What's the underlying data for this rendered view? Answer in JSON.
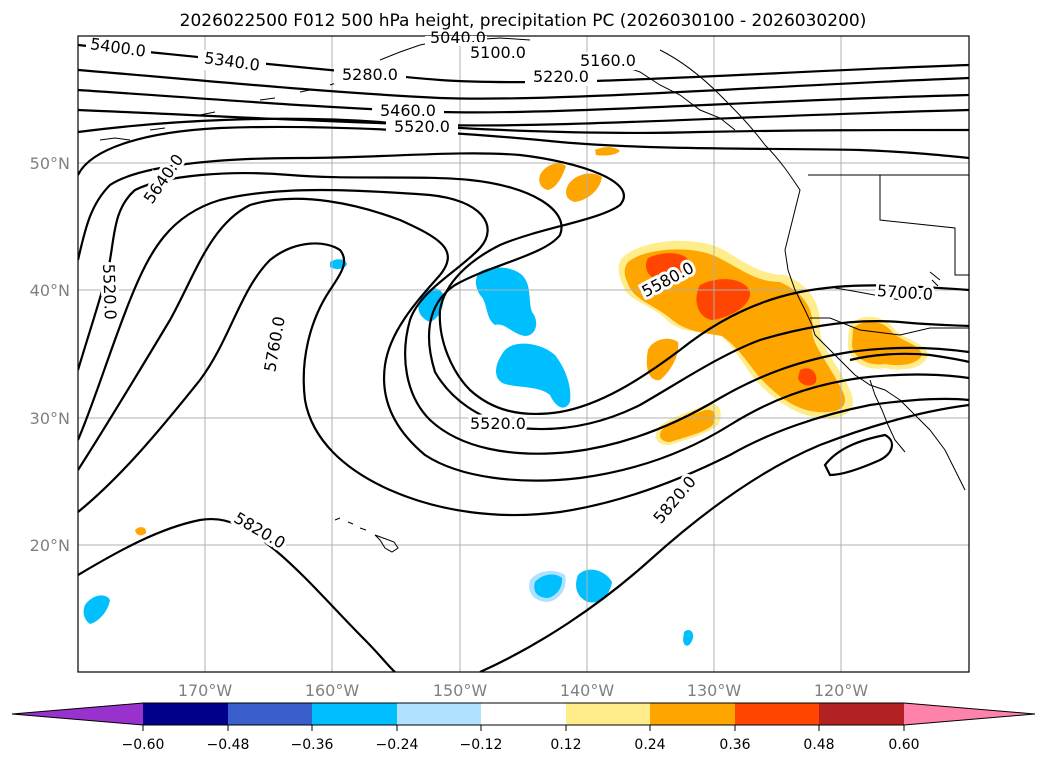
{
  "title": "2026022500 F012 500 hPa height, precipitation PC (2026030100 - 2026030200)",
  "lat_labels": [
    "50°N",
    "40°N",
    "30°N",
    "20°N"
  ],
  "lon_labels": [
    "170°W",
    "160°W",
    "150°W",
    "140°W",
    "130°W",
    "120°W"
  ],
  "colorbar": {
    "ticks": [
      "−0.60",
      "−0.48",
      "−0.36",
      "−0.24",
      "−0.12",
      "0.12",
      "0.24",
      "0.36",
      "0.48",
      "0.60"
    ],
    "colors": [
      "#9932cc",
      "#00008b",
      "#3a5fcd",
      "#00bfff",
      "#b0e2ff",
      "#ffffff",
      "#ffec8b",
      "#ffa500",
      "#ff4500",
      "#b22222",
      "#ff82ab"
    ]
  },
  "contour_labels": {
    "c5400a": "5400.0",
    "c5340": "5340.0",
    "c5040": "5040.0",
    "c5100": "5100.0",
    "c5160": "5160.0",
    "c5280": "5280.0",
    "c5220": "5220.0",
    "c5460": "5460.0",
    "c5520a": "5520.0",
    "c5640": "5640.0",
    "c5520b": "5520.0",
    "c5760": "5760.0",
    "c5580": "5580.0",
    "c5700": "5700.0",
    "c5520c": "5520.0",
    "c5820a": "5820.0",
    "c5820b": "5820.0"
  },
  "chart_data": {
    "type": "map",
    "title": "2026022500 F012 500 hPa height, precipitation PC (2026030100 - 2026030200)",
    "projection": "lat-lon",
    "lon_range": [
      -180,
      -110
    ],
    "lat_range": [
      10,
      60
    ],
    "grid": true,
    "contour_field": "500 hPa height",
    "contour_levels_labeled": [
      5040,
      5100,
      5160,
      5220,
      5280,
      5340,
      5400,
      5460,
      5520,
      5580,
      5640,
      5700,
      5760,
      5820
    ],
    "shaded_field": "precipitation PC",
    "colorbar_ticks": [
      -0.6,
      -0.48,
      -0.36,
      -0.24,
      -0.12,
      0.12,
      0.24,
      0.36,
      0.48,
      0.6
    ],
    "colorbar_extend": "both"
  }
}
